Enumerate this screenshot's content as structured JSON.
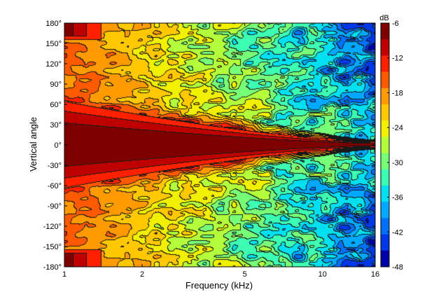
{
  "chart_data": {
    "type": "heatmap",
    "title": "",
    "xlabel": "Frequency (kHz)",
    "ylabel": "Vertical angle",
    "x_scale": "log",
    "xlim": [
      1,
      16
    ],
    "ylim": [
      -180,
      180
    ],
    "x_ticks": [
      1,
      2,
      5,
      10,
      16
    ],
    "x_tick_labels": [
      "1",
      "2",
      "5",
      "10",
      "16"
    ],
    "y_ticks": [
      180,
      150,
      120,
      90,
      60,
      30,
      0,
      -30,
      -60,
      -90,
      -120,
      -150,
      -180
    ],
    "y_tick_labels": [
      "180°",
      "150°",
      "120°",
      "90°",
      "60°",
      "30°",
      "0°",
      "-30°",
      "-60°",
      "-90°",
      "-120°",
      "-150°",
      "-180°"
    ],
    "colorbar": {
      "label": "dB",
      "range": [
        -48,
        -6
      ],
      "ticks": [
        -6,
        -12,
        -18,
        -24,
        -30,
        -36,
        -42,
        -48
      ],
      "tick_labels": [
        "-6",
        "-12",
        "-18",
        "-24",
        "-30",
        "-36",
        "-42",
        "-48"
      ],
      "levels_db": [
        -6,
        -9,
        -12,
        -15,
        -18,
        -21,
        -24,
        -27,
        -30,
        -33,
        -36,
        -39,
        -42,
        -45,
        -48
      ],
      "level_colors": [
        "#7f0000",
        "#bf0000",
        "#ff2000",
        "#ff5a00",
        "#ff9a00",
        "#ffc800",
        "#f0f000",
        "#b4ff3c",
        "#78ff78",
        "#3cffb4",
        "#00e0f0",
        "#00a8ff",
        "#0070ff",
        "#0038e8",
        "#0000a8"
      ]
    },
    "grid": false,
    "legend": "none",
    "contour_lines": true,
    "beamwidth_db_at_frequency": {
      "frequency_khz": [
        1,
        1.5,
        2,
        3,
        5,
        8,
        12,
        16
      ],
      "half_angle_deg_for_level_minus6": [
        48,
        42,
        36,
        28,
        18,
        10,
        5,
        2
      ],
      "half_angle_deg_for_level_minus12": [
        70,
        62,
        52,
        42,
        30,
        24,
        18,
        12
      ]
    }
  }
}
